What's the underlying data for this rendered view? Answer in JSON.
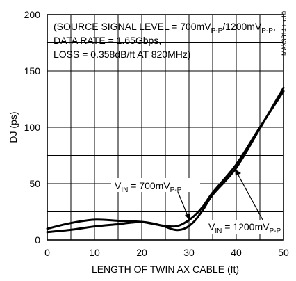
{
  "chart_data": {
    "type": "line",
    "side_id": "MAX3814 toc10",
    "xlabel": "LENGTH OF TWIN AX CABLE (ft)",
    "ylabel": "DJ (ps)",
    "xlim": [
      0,
      50
    ],
    "ylim": [
      0,
      200
    ],
    "x_ticks": [
      "0",
      "10",
      "20",
      "30",
      "40",
      "50"
    ],
    "y_ticks": [
      "0",
      "50",
      "100",
      "150",
      "200"
    ],
    "grid": true,
    "annotation": [
      "(SOURCE SIGNAL LEVEL = 700mV",
      "P-P",
      "/1200mV",
      "P-P",
      ",",
      "DATA RATE = 1.65Gbps,",
      "LOSS = 0.358dB/ft AT 820MHz)"
    ],
    "series": [
      {
        "name_main": "V",
        "name_sub": "IN",
        "name_value": " = 700mV",
        "name_unit_sub": "P-P",
        "x": [
          0,
          5,
          10,
          15,
          20,
          24,
          27,
          29,
          31,
          33,
          35,
          40,
          45,
          50
        ],
        "y": [
          10,
          15,
          18,
          17,
          16,
          13,
          12,
          15,
          21,
          30,
          42,
          67,
          100,
          132
        ]
      },
      {
        "name_main": "V",
        "name_sub": "IN",
        "name_value": " = 1200mV",
        "name_unit_sub": "P-P",
        "x": [
          0,
          5,
          10,
          15,
          20,
          24,
          27,
          29,
          31,
          33,
          35,
          40,
          45,
          50
        ],
        "y": [
          7,
          9,
          12,
          14,
          16,
          13,
          9,
          10,
          16,
          27,
          40,
          64,
          99,
          135
        ]
      }
    ]
  }
}
